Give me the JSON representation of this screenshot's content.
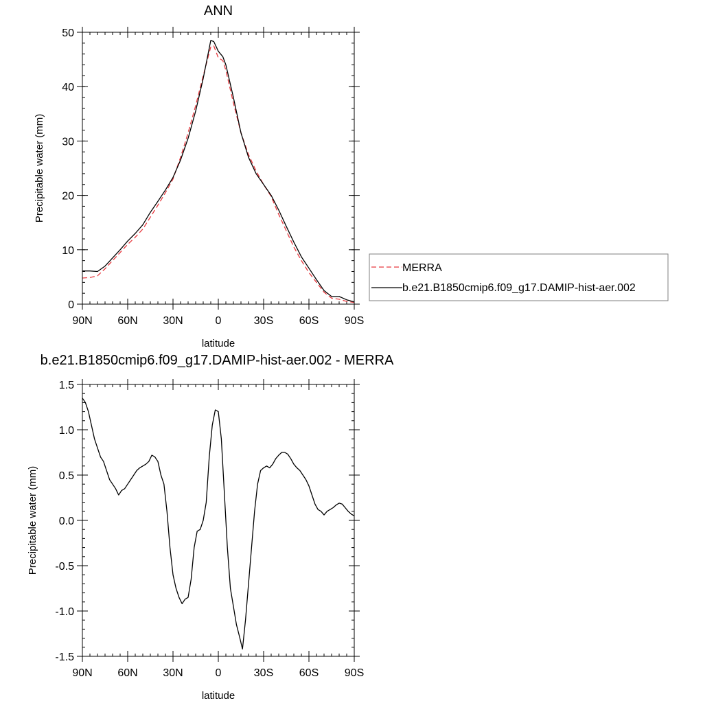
{
  "colors": {
    "merra": "#e8383d",
    "model": "#000000",
    "axes": "#000000",
    "legend_border": "#7f7f7f"
  },
  "chart_data": [
    {
      "type": "line",
      "title": "ANN",
      "xlabel": "latitude",
      "ylabel": "Precipitable water (mm)",
      "xlim": [
        90,
        -90
      ],
      "ylim": [
        0,
        50
      ],
      "x_ticks": [
        90,
        60,
        30,
        0,
        -30,
        -60,
        -90
      ],
      "x_tick_labels": [
        "90N",
        "60N",
        "30N",
        "0",
        "30S",
        "60S",
        "90S"
      ],
      "y_ticks": [
        0,
        10,
        20,
        30,
        40,
        50
      ],
      "y_tick_labels": [
        "0",
        "10",
        "20",
        "30",
        "40",
        "50"
      ],
      "grid": false,
      "legend_placement": "right",
      "series": [
        {
          "name": "MERRA",
          "style": "dashed",
          "x": [
            90,
            85,
            80,
            75,
            70,
            65,
            60,
            55,
            50,
            45,
            40,
            35,
            30,
            25,
            20,
            15,
            10,
            5,
            3,
            0,
            -3,
            -5,
            -10,
            -15,
            -20,
            -25,
            -30,
            -35,
            -40,
            -45,
            -50,
            -55,
            -60,
            -65,
            -70,
            -75,
            -80,
            -85,
            -90
          ],
          "values": [
            4.8,
            4.9,
            5.2,
            6.5,
            8.0,
            9.5,
            11.0,
            12.3,
            13.8,
            16.0,
            18.2,
            20.5,
            23.0,
            27.0,
            31.5,
            36.5,
            42.0,
            47.3,
            47.5,
            45.3,
            44.8,
            43.0,
            37.0,
            31.5,
            27.5,
            24.5,
            22.0,
            19.8,
            16.5,
            13.5,
            10.5,
            8.0,
            5.8,
            4.0,
            2.2,
            1.1,
            0.9,
            0.5,
            0.3
          ]
        },
        {
          "name": "b.e21.B1850cmip6.f09_g17.DAMIP-hist-aer.002",
          "style": "solid",
          "x": [
            90,
            85,
            80,
            75,
            70,
            65,
            60,
            55,
            50,
            45,
            40,
            35,
            30,
            25,
            20,
            15,
            10,
            5,
            3,
            0,
            -3,
            -5,
            -10,
            -15,
            -20,
            -25,
            -30,
            -35,
            -40,
            -45,
            -50,
            -55,
            -60,
            -65,
            -70,
            -75,
            -80,
            -85,
            -90
          ],
          "values": [
            6.1,
            6.1,
            6.0,
            7.0,
            8.5,
            10.0,
            11.6,
            13.0,
            14.6,
            16.9,
            18.9,
            21.0,
            23.3,
            26.5,
            30.5,
            35.5,
            41.5,
            48.5,
            48.3,
            46.5,
            45.5,
            44.0,
            38.0,
            31.5,
            27.0,
            24.0,
            22.0,
            20.0,
            17.3,
            14.3,
            11.4,
            8.7,
            6.6,
            4.5,
            2.5,
            1.4,
            1.4,
            0.8,
            0.4
          ]
        }
      ]
    },
    {
      "type": "line",
      "title": "b.e21.B1850cmip6.f09_g17.DAMIP-hist-aer.002 - MERRA",
      "xlabel": "latitude",
      "ylabel": "Precipitable water (mm)",
      "xlim": [
        90,
        -90
      ],
      "ylim": [
        -1.5,
        1.5
      ],
      "x_ticks": [
        90,
        60,
        30,
        0,
        -30,
        -60,
        -90
      ],
      "x_tick_labels": [
        "90N",
        "60N",
        "30N",
        "0",
        "30S",
        "60S",
        "90S"
      ],
      "y_ticks": [
        -1.5,
        -1.0,
        -0.5,
        0.0,
        0.5,
        1.0,
        1.5
      ],
      "y_tick_labels": [
        "-1.5",
        "-1.0",
        "-0.5",
        "0.0",
        "0.5",
        "1.0",
        "1.5"
      ],
      "grid": false,
      "series": [
        {
          "style": "solid",
          "x": [
            90,
            88,
            86,
            84,
            82,
            80,
            78,
            76,
            74,
            72,
            70,
            68,
            66,
            64,
            62,
            60,
            58,
            56,
            54,
            52,
            50,
            48,
            46,
            44,
            42,
            40,
            38,
            36,
            34,
            32,
            30,
            28,
            26,
            24,
            22,
            20,
            18,
            16,
            14,
            12,
            10,
            8,
            6,
            4,
            2,
            0,
            -2,
            -4,
            -6,
            -8,
            -10,
            -12,
            -14,
            -16,
            -18,
            -20,
            -22,
            -24,
            -26,
            -28,
            -30,
            -32,
            -34,
            -36,
            -38,
            -40,
            -42,
            -44,
            -46,
            -48,
            -50,
            -52,
            -54,
            -56,
            -58,
            -60,
            -62,
            -64,
            -66,
            -68,
            -70,
            -72,
            -74,
            -76,
            -78,
            -80,
            -82,
            -84,
            -86,
            -88,
            -90
          ],
          "values": [
            1.35,
            1.3,
            1.2,
            1.05,
            0.9,
            0.8,
            0.7,
            0.65,
            0.55,
            0.45,
            0.4,
            0.35,
            0.28,
            0.33,
            0.35,
            0.4,
            0.45,
            0.5,
            0.55,
            0.58,
            0.6,
            0.62,
            0.65,
            0.72,
            0.7,
            0.65,
            0.5,
            0.4,
            0.1,
            -0.3,
            -0.6,
            -0.75,
            -0.85,
            -0.92,
            -0.87,
            -0.85,
            -0.65,
            -0.3,
            -0.12,
            -0.1,
            0.0,
            0.2,
            0.7,
            1.05,
            1.22,
            1.2,
            0.9,
            0.3,
            -0.3,
            -0.75,
            -0.95,
            -1.15,
            -1.28,
            -1.42,
            -1.1,
            -0.7,
            -0.3,
            0.1,
            0.4,
            0.55,
            0.58,
            0.6,
            0.58,
            0.62,
            0.68,
            0.72,
            0.75,
            0.75,
            0.73,
            0.68,
            0.62,
            0.58,
            0.55,
            0.5,
            0.45,
            0.38,
            0.28,
            0.18,
            0.12,
            0.1,
            0.06,
            0.1,
            0.12,
            0.14,
            0.17,
            0.19,
            0.18,
            0.14,
            0.1,
            0.07,
            0.05
          ]
        }
      ]
    }
  ]
}
